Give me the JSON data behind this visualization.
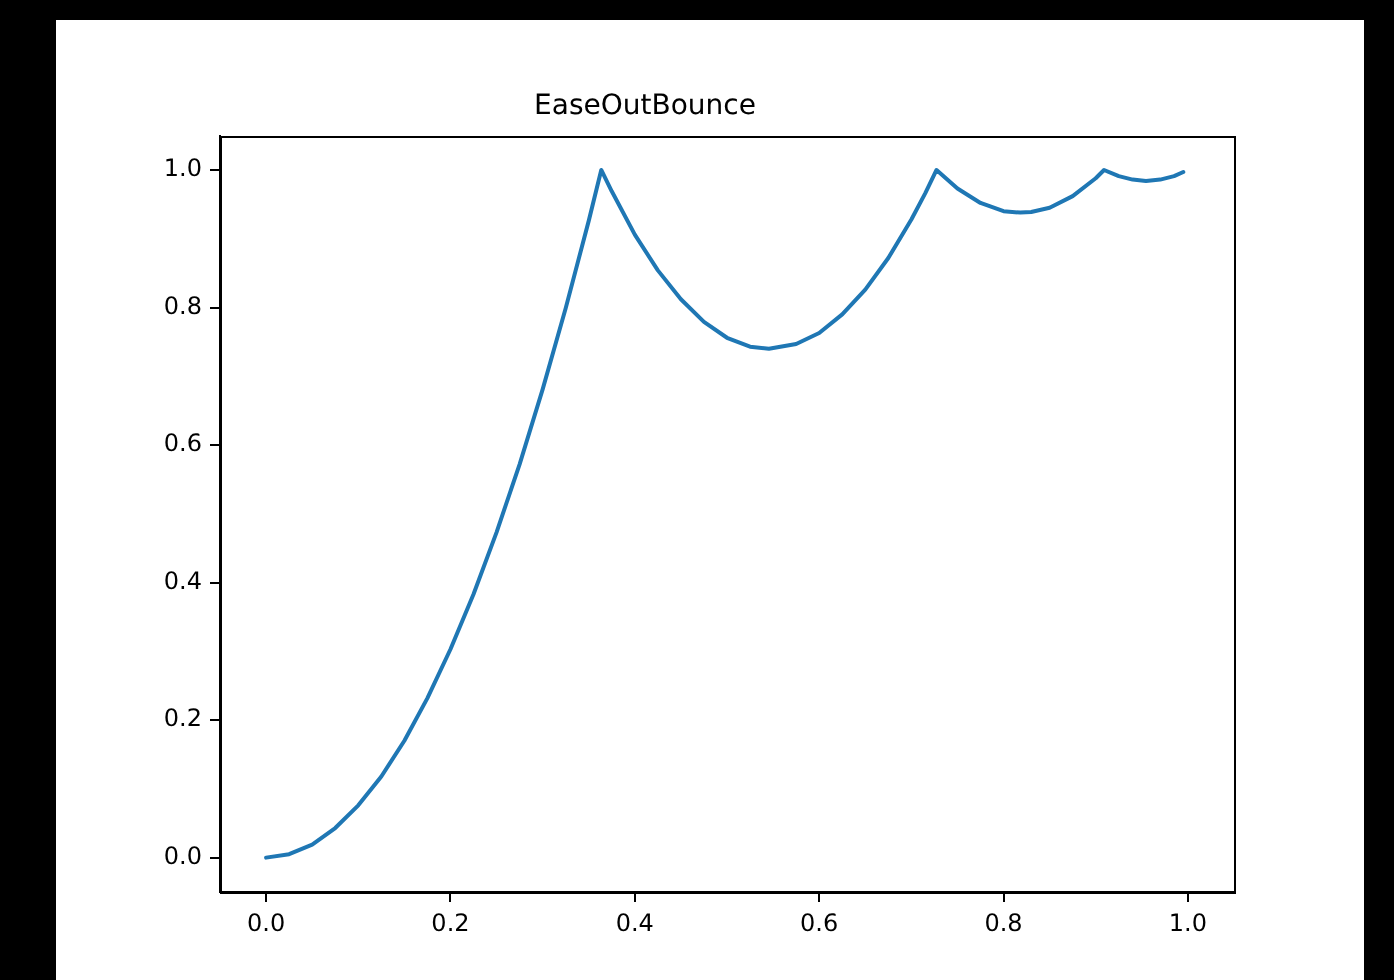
{
  "chart_data": {
    "type": "line",
    "title": "EaseOutBounce",
    "x": [
      0,
      0.025,
      0.05,
      0.075,
      0.1,
      0.125,
      0.15,
      0.175,
      0.2,
      0.225,
      0.25,
      0.275,
      0.3,
      0.325,
      0.35,
      0.3636,
      0.375,
      0.4,
      0.425,
      0.45,
      0.475,
      0.5,
      0.525,
      0.5455,
      0.575,
      0.6,
      0.625,
      0.65,
      0.675,
      0.7,
      0.715,
      0.7273,
      0.75,
      0.775,
      0.8,
      0.8182,
      0.83,
      0.85,
      0.875,
      0.9,
      0.909,
      0.925,
      0.94,
      0.9545,
      0.97,
      0.985,
      0.995
    ],
    "series": [
      {
        "color": "#1f77b4",
        "values": [
          0,
          0.005,
          0.019,
          0.043,
          0.076,
          0.118,
          0.17,
          0.232,
          0.303,
          0.383,
          0.473,
          0.572,
          0.681,
          0.799,
          0.926,
          1.0,
          0.969,
          0.906,
          0.854,
          0.812,
          0.779,
          0.756,
          0.743,
          0.74,
          0.747,
          0.763,
          0.79,
          0.826,
          0.872,
          0.928,
          0.966,
          1.0,
          0.973,
          0.952,
          0.94,
          0.938,
          0.939,
          0.945,
          0.962,
          0.988,
          1.0,
          0.991,
          0.986,
          0.984,
          0.986,
          0.991,
          0.997
        ]
      }
    ],
    "xlim": [
      -0.05,
      1.05
    ],
    "ylim": [
      -0.05,
      1.05
    ],
    "xticks": [
      {
        "value": 0,
        "label": "0.0"
      },
      {
        "value": 0.2,
        "label": "0.2"
      },
      {
        "value": 0.4,
        "label": "0.4"
      },
      {
        "value": 0.6,
        "label": "0.6"
      },
      {
        "value": 0.8,
        "label": "0.8"
      },
      {
        "value": 1,
        "label": "1.0"
      }
    ],
    "yticks": [
      {
        "value": 0,
        "label": "0.0"
      },
      {
        "value": 0.2,
        "label": "0.2"
      },
      {
        "value": 0.4,
        "label": "0.4"
      },
      {
        "value": 0.6,
        "label": "0.6"
      },
      {
        "value": 0.8,
        "label": "0.8"
      },
      {
        "value": 1,
        "label": "1.0"
      }
    ],
    "marker": "none",
    "line_style": "solid"
  }
}
